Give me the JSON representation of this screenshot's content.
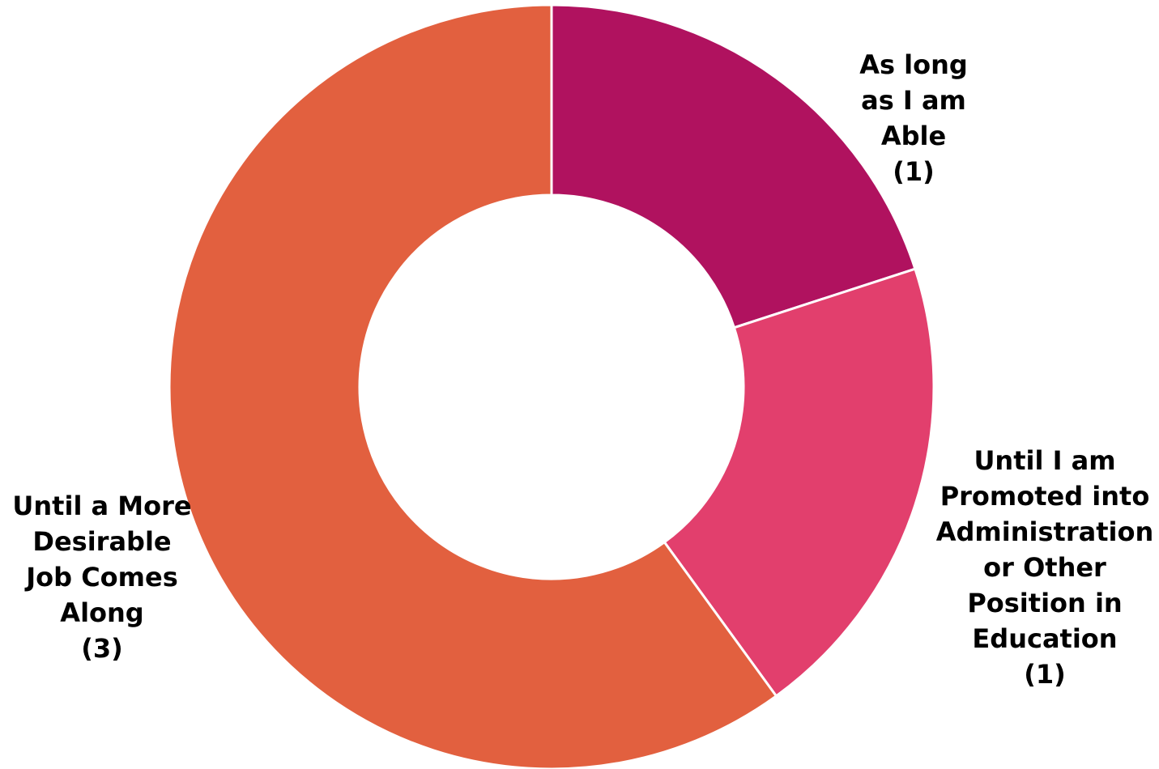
{
  "chart_data": {
    "type": "pie",
    "variant": "donut",
    "start_angle": "12 o'clock, clockwise",
    "slices": [
      {
        "label_lines": [
          "As long",
          "as I am",
          "Able"
        ],
        "value": 1,
        "value_text": "(1)",
        "color": "#B0125F"
      },
      {
        "label_lines": [
          "Until I am",
          "Promoted into",
          "Administration",
          "or Other",
          "Position in",
          "Education"
        ],
        "value": 1,
        "value_text": "(1)",
        "color": "#E23F6D"
      },
      {
        "label_lines": [
          "Until a More",
          "Desirable",
          "Job Comes",
          "Along"
        ],
        "value": 3,
        "value_text": "(3)",
        "color": "#E2603F"
      }
    ],
    "separator_color": "#FFFFFF",
    "legend": "none"
  }
}
